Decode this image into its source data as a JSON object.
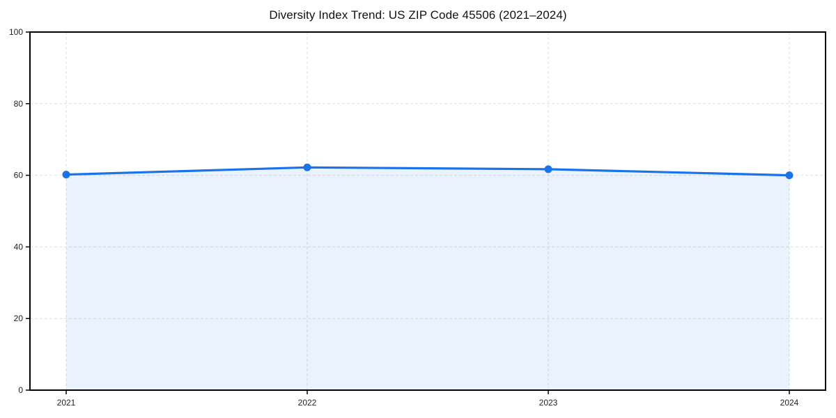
{
  "chart_data": {
    "type": "area",
    "title": "Diversity Index Trend: US ZIP Code 45506 (2021–2024)",
    "categories": [
      "2021",
      "2022",
      "2023",
      "2024"
    ],
    "series": [
      {
        "name": "Diversity Index",
        "values": [
          60.2,
          62.2,
          61.7,
          60.0
        ]
      }
    ],
    "xlabel": "",
    "ylabel": "",
    "ylim": [
      0,
      100
    ],
    "yticks": [
      0,
      20,
      40,
      60,
      80,
      100
    ],
    "ytick_labels": [
      "0",
      "20",
      "40",
      "60",
      "80",
      "100"
    ],
    "grid": "dashed",
    "legend": "none",
    "colors": {
      "line": "#1a73e8",
      "marker": "#1a73e8",
      "fill": "rgba(26,115,232,0.09)",
      "grid": "#dedede",
      "spine": "#000000",
      "tick_label": "#222222",
      "title": "#111111",
      "background": "#ffffff"
    }
  }
}
